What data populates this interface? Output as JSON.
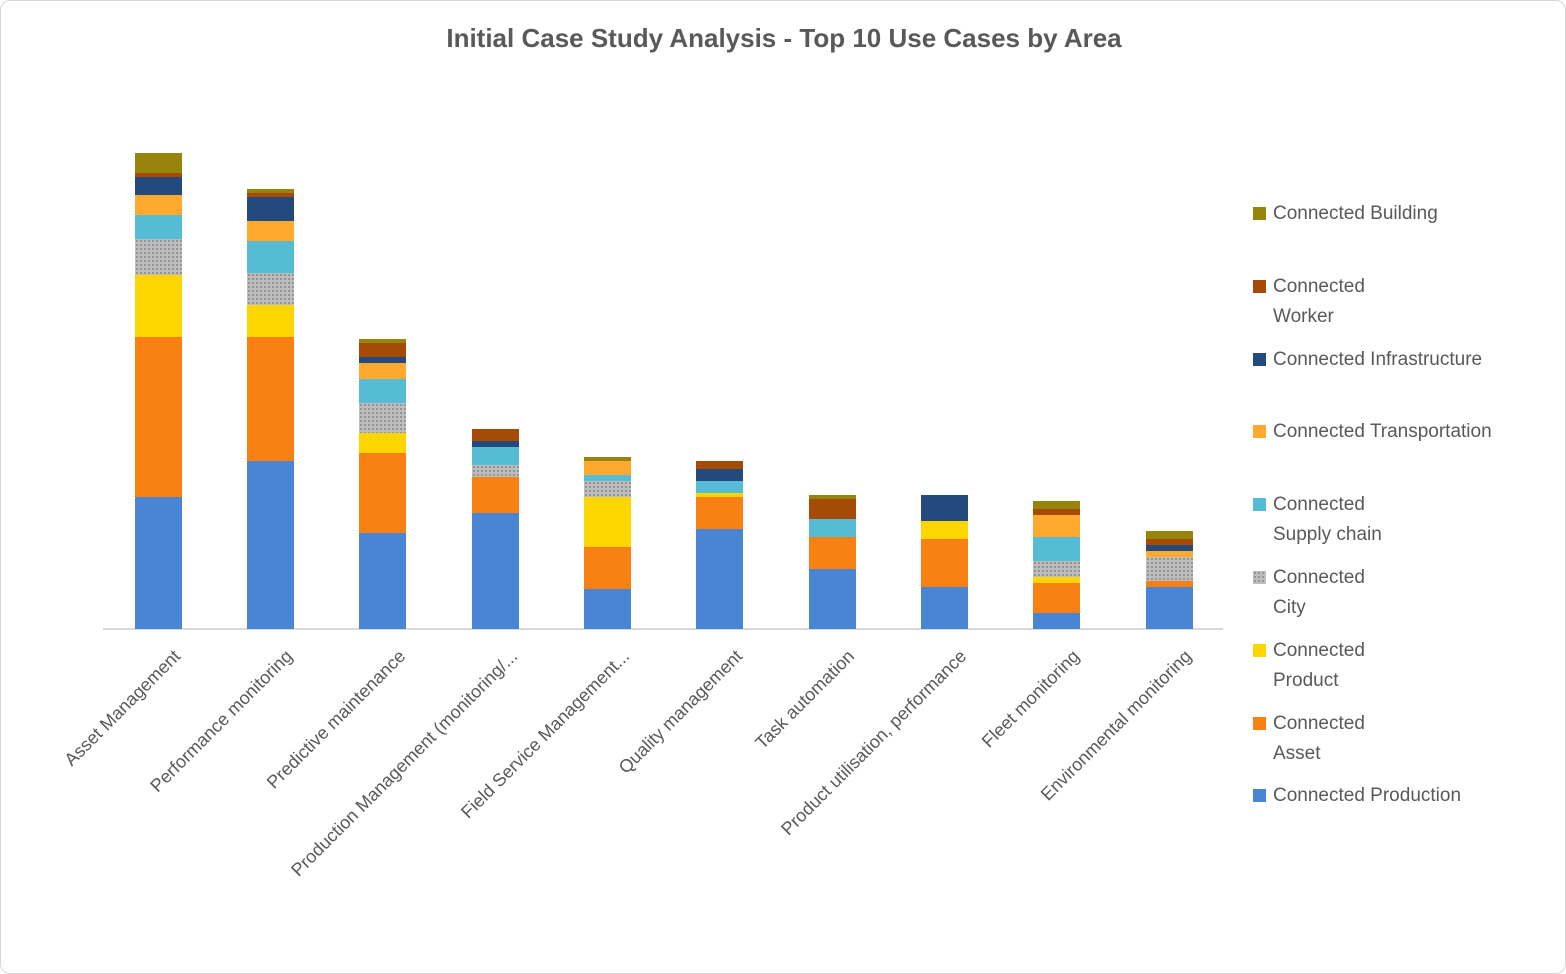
{
  "chart_data": {
    "type": "bar",
    "stacked": true,
    "title": "Initial Case Study Analysis - Top 10 Use Cases by Area",
    "title_color": "#595959",
    "text_color": "#595959",
    "axis_line_color": "#D9D9D9",
    "legend_position": "right",
    "grid": false,
    "y_axis_visible": false,
    "ylim": [
      0,
      125
    ],
    "value_unit": "use cases (estimated from bar heights)",
    "categories": [
      "Asset Management",
      "Performance monitoring",
      "Predictive maintenance",
      "Production Management (monitoring/...",
      "Field Service Management...",
      "Quality management",
      "Task automation",
      "Product utilisation, performance",
      "Fleet monitoring",
      "Environmental monitoring"
    ],
    "series": [
      {
        "name": "Connected Production",
        "color": "#4A84D4",
        "pattern": "solid",
        "legend_lines": [
          "Connected Production"
        ],
        "values": [
          33,
          42,
          24,
          29,
          10,
          25,
          15,
          10.5,
          4,
          10.5
        ]
      },
      {
        "name": "Connected Asset",
        "color": "#F98114",
        "pattern": "solid",
        "legend_lines": [
          "Connected",
          "Asset"
        ],
        "values": [
          40,
          31,
          20,
          9,
          10.5,
          8,
          8,
          12,
          7.5,
          1.5
        ]
      },
      {
        "name": "Connected Product",
        "color": "#FFD500",
        "pattern": "solid",
        "legend_lines": [
          "Connected",
          "Product"
        ],
        "values": [
          15.5,
          8,
          5,
          0,
          12.5,
          1,
          0,
          4.5,
          1.5,
          0
        ]
      },
      {
        "name": "Connected City",
        "color": "#BDBDBD",
        "pattern": "dots",
        "legend_lines": [
          "Connected",
          "City"
        ],
        "values": [
          9,
          8,
          7.5,
          3,
          4,
          0,
          0,
          0,
          4,
          6
        ]
      },
      {
        "name": "Connected Supply chain",
        "color": "#56BCD5",
        "pattern": "solid",
        "legend_lines": [
          "Connected",
          "Supply chain"
        ],
        "values": [
          6,
          8,
          6,
          4.5,
          1.5,
          3,
          4.5,
          0,
          6,
          0
        ]
      },
      {
        "name": "Connected Transportation",
        "color": "#FFA92E",
        "pattern": "solid",
        "legend_lines": [
          "Connected Transportation"
        ],
        "values": [
          5,
          5,
          4,
          0,
          3.5,
          0,
          0,
          0,
          5.5,
          1.5
        ]
      },
      {
        "name": "Connected Infrastructure",
        "color": "#24497D",
        "pattern": "solid",
        "legend_lines": [
          "Connected Infrastructure"
        ],
        "values": [
          4.5,
          6,
          1.5,
          1.5,
          0,
          3,
          0,
          6.5,
          0,
          1.5
        ]
      },
      {
        "name": "Connected Worker",
        "color": "#A64B06",
        "pattern": "solid",
        "legend_lines": [
          "Connected",
          "Worker"
        ],
        "values": [
          1,
          1,
          3.5,
          3,
          0,
          2,
          5,
          0,
          1.5,
          1.5
        ]
      },
      {
        "name": "Connected Building",
        "color": "#97840A",
        "pattern": "solid",
        "legend_lines": [
          "Connected Building"
        ],
        "values": [
          5,
          1,
          1,
          0,
          1,
          0,
          1,
          0,
          2,
          2
        ]
      }
    ]
  }
}
